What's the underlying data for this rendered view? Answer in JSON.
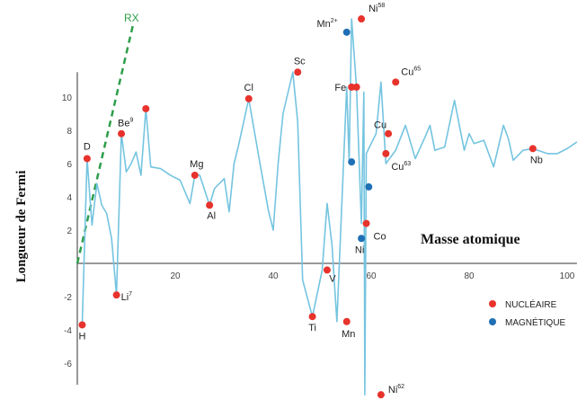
{
  "chart_data": {
    "type": "line",
    "xlabel": "Masse atomique",
    "ylabel": "Longueur de Fermi",
    "xlim": [
      0,
      102
    ],
    "ylim": [
      -7.3,
      11.5
    ],
    "x_ticks": [
      20,
      40,
      60,
      80,
      100
    ],
    "y_ticks": [
      -6,
      -4,
      -2,
      2,
      4,
      6,
      8,
      10
    ],
    "line_color": "#74c4e0",
    "nuclear_color": "#e8322c",
    "magnetic_color": "#1f6fb5",
    "rx_color": "#2e9e4a",
    "rx_label": "RX",
    "rx_line": {
      "x": [
        0,
        11.5
      ],
      "y": [
        0,
        14.5
      ]
    },
    "trace": {
      "x": [
        1,
        2,
        3,
        4,
        5,
        6,
        7,
        8,
        9,
        10,
        11,
        12,
        13,
        14,
        15,
        17,
        19,
        21,
        23,
        24,
        25,
        27,
        28,
        30,
        31,
        32,
        33,
        35,
        37,
        39,
        40,
        41,
        42,
        44,
        45,
        46,
        48,
        50,
        51,
        52,
        53,
        55,
        55.5,
        56,
        57,
        58,
        58.5,
        58.7,
        59,
        61,
        62,
        63,
        63.5,
        64,
        65,
        67,
        69,
        71,
        72,
        73,
        75,
        77,
        79,
        80,
        81,
        83,
        85,
        87,
        88,
        89,
        91,
        93,
        94,
        96,
        98,
        100,
        102
      ],
      "y": [
        -3.7,
        6.3,
        2.3,
        4.8,
        3.5,
        3.0,
        1.5,
        -1.9,
        7.8,
        5.5,
        6.0,
        6.7,
        5.3,
        9.3,
        5.8,
        5.7,
        5.3,
        5.0,
        3.6,
        5.3,
        5.3,
        3.5,
        4.5,
        5.1,
        3.1,
        6.0,
        7.2,
        9.9,
        6.5,
        3.2,
        2.0,
        6.0,
        9.0,
        11.5,
        8.5,
        -1.0,
        -3.2,
        -0.4,
        3.6,
        1.1,
        -3.5,
        10.6,
        6.1,
        14.7,
        10.6,
        2.4,
        10.3,
        -7.9,
        6.6,
        7.8,
        10.9,
        6.0,
        6.2,
        6.4,
        6.8,
        8.3,
        6.3,
        7.6,
        8.3,
        6.8,
        7.0,
        9.8,
        6.8,
        7.8,
        7.2,
        7.4,
        5.8,
        8.3,
        7.5,
        6.2,
        6.8,
        6.9,
        6.8,
        6.6,
        6.6,
        6.9,
        7.3
      ]
    },
    "points": [
      {
        "label": "H",
        "sup": "",
        "x": 1,
        "y": -3.7,
        "kind": "nuclear"
      },
      {
        "label": "D",
        "sup": "",
        "x": 2,
        "y": 6.3,
        "kind": "nuclear"
      },
      {
        "label": "Li",
        "sup": "7",
        "x": 8,
        "y": -1.9,
        "kind": "nuclear"
      },
      {
        "label": "Be",
        "sup": "9",
        "x": 9,
        "y": 7.8,
        "kind": "nuclear"
      },
      {
        "label": "",
        "sup": "",
        "x": 14,
        "y": 9.3,
        "kind": "nuclear"
      },
      {
        "label": "Mg",
        "sup": "",
        "x": 24,
        "y": 5.3,
        "kind": "nuclear"
      },
      {
        "label": "Al",
        "sup": "",
        "x": 27,
        "y": 3.5,
        "kind": "nuclear"
      },
      {
        "label": "Cl",
        "sup": "",
        "x": 35,
        "y": 9.9,
        "kind": "nuclear"
      },
      {
        "label": "Sc",
        "sup": "",
        "x": 45,
        "y": 11.5,
        "kind": "nuclear"
      },
      {
        "label": "Ti",
        "sup": "",
        "x": 48,
        "y": -3.2,
        "kind": "nuclear"
      },
      {
        "label": "V",
        "sup": "",
        "x": 51,
        "y": -0.4,
        "kind": "nuclear"
      },
      {
        "label": "Mn",
        "sup": "",
        "x": 55,
        "y": -3.5,
        "kind": "nuclear"
      },
      {
        "label": "Mn",
        "sup": "2+",
        "x": 55,
        "y": 13.9,
        "kind": "magnetic"
      },
      {
        "label": "",
        "sup": "",
        "x": 56,
        "y": 6.1,
        "kind": "magnetic"
      },
      {
        "label": "Fe",
        "sup": "",
        "x": 56,
        "y": 10.6,
        "kind": "nuclear"
      },
      {
        "label": "Ni",
        "sup": "58",
        "x": 58,
        "y": 14.7,
        "kind": "nuclear"
      },
      {
        "label": "Ni",
        "sup": "",
        "x": 58,
        "y": 1.5,
        "kind": "magnetic"
      },
      {
        "label": "Co",
        "sup": "",
        "x": 59,
        "y": 2.4,
        "kind": "nuclear"
      },
      {
        "label": "",
        "sup": "",
        "x": 59.5,
        "y": 4.6,
        "kind": "magnetic"
      },
      {
        "label": "",
        "sup": "",
        "x": 57,
        "y": 10.6,
        "kind": "nuclear"
      },
      {
        "label": "Ni",
        "sup": "62",
        "x": 62,
        "y": -7.9,
        "kind": "nuclear"
      },
      {
        "label": "Cu",
        "sup": "",
        "x": 63.5,
        "y": 7.8,
        "kind": "nuclear"
      },
      {
        "label": "Cu",
        "sup": "63",
        "x": 63,
        "y": 6.6,
        "kind": "nuclear"
      },
      {
        "label": "Cu",
        "sup": "65",
        "x": 65,
        "y": 10.9,
        "kind": "nuclear"
      },
      {
        "label": "Nb",
        "sup": "",
        "x": 93,
        "y": 6.9,
        "kind": "nuclear"
      }
    ],
    "legend": {
      "position": "bottom-right",
      "items": [
        {
          "label": "NUCLÉAIRE",
          "kind": "nuclear"
        },
        {
          "label": "MAGNÉTIQUE",
          "kind": "magnetic"
        }
      ]
    }
  }
}
